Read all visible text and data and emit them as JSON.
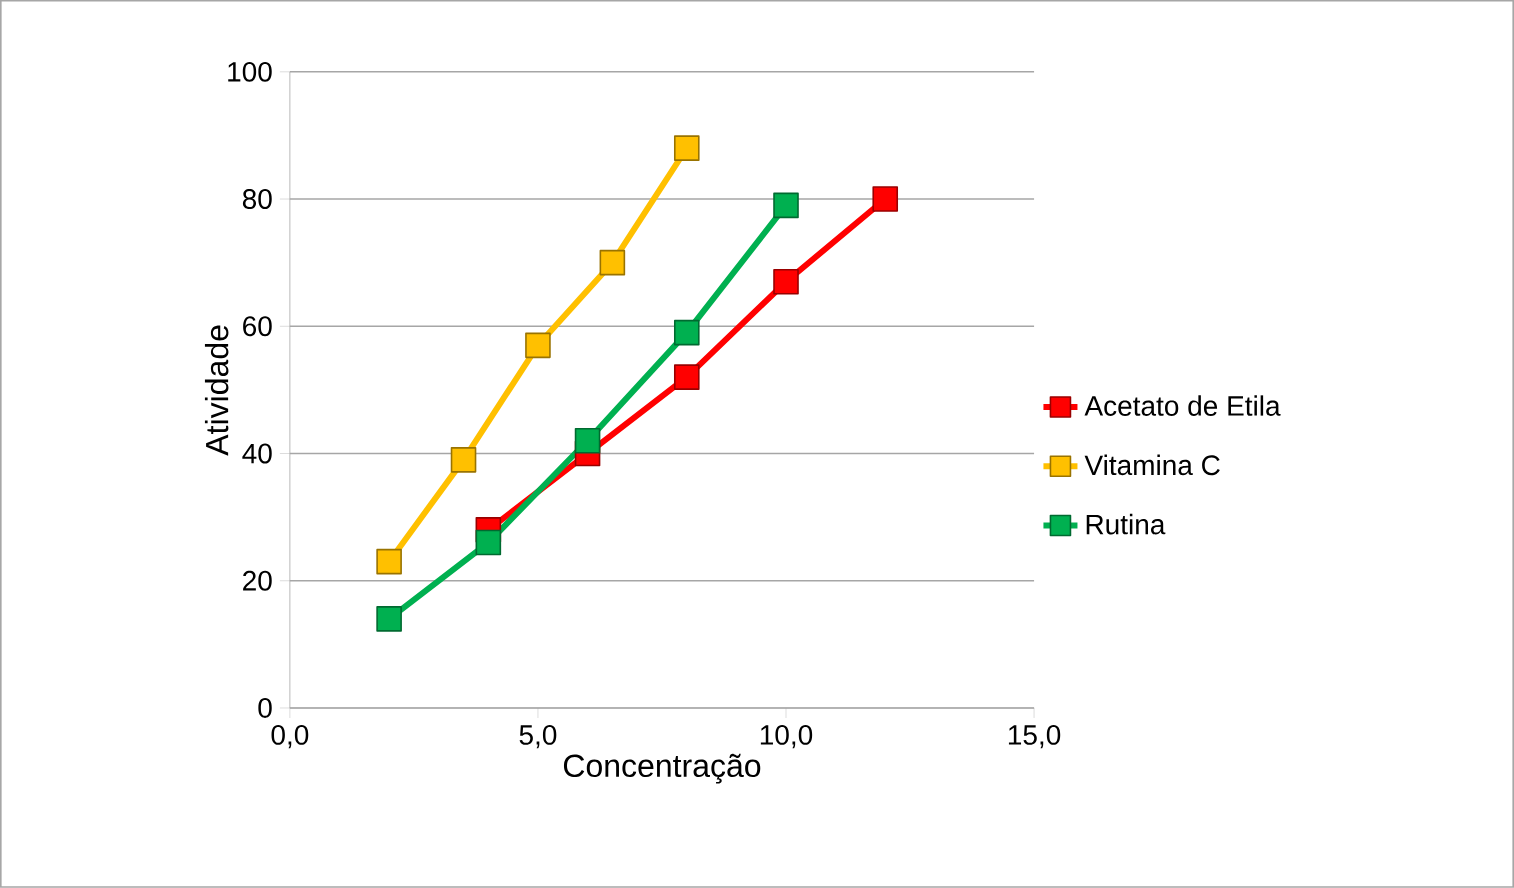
{
  "chart_data": {
    "type": "line",
    "xlabel": "Concentração",
    "ylabel": "Atividade",
    "series": [
      {
        "name": "Acetato de Etila",
        "color": "#ff0000",
        "x": [
          4,
          6,
          8,
          10,
          12
        ],
        "values": [
          28,
          40,
          52,
          67,
          80
        ]
      },
      {
        "name": "Vitamina C",
        "color": "#ffc000",
        "x": [
          2,
          3.5,
          5,
          6.5,
          8
        ],
        "values": [
          23,
          39,
          57,
          70,
          88
        ]
      },
      {
        "name": "Rutina",
        "color": "#00b050",
        "x": [
          2,
          4,
          6,
          8,
          10
        ],
        "values": [
          14,
          26,
          42,
          59,
          79
        ]
      }
    ],
    "xlim": [
      0,
      15
    ],
    "xticks": [
      {
        "value": 0,
        "label": "0,0"
      },
      {
        "value": 5,
        "label": "5,0"
      },
      {
        "value": 10,
        "label": "10,0"
      },
      {
        "value": 15,
        "label": "15,0"
      }
    ],
    "ylim": [
      0,
      100
    ],
    "yticks": [
      0,
      20,
      40,
      60,
      80,
      100
    ],
    "grid": "y",
    "legend": "right",
    "marker": "square",
    "line_style": "solid"
  }
}
